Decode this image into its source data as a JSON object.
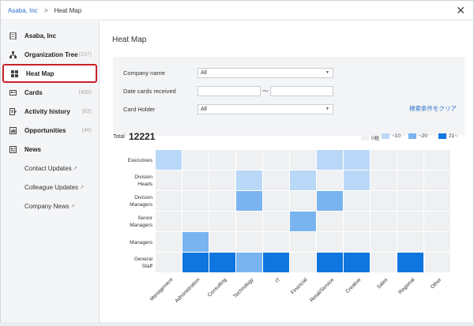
{
  "breadcrumb": {
    "company": "Asaba, Inc",
    "separator": ">",
    "current": "Heat Map"
  },
  "sidebar": {
    "items": [
      {
        "label": "Asaba, Inc",
        "count": "",
        "icon": "building-icon"
      },
      {
        "label": "Organization Tree",
        "count": "(237)",
        "icon": "org-tree-icon"
      },
      {
        "label": "Heat Map",
        "count": "",
        "icon": "grid-icon"
      },
      {
        "label": "Cards",
        "count": "(485)",
        "icon": "card-icon"
      },
      {
        "label": "Activity history",
        "count": "(83)",
        "icon": "history-icon"
      },
      {
        "label": "Opportunities",
        "count": "(46)",
        "icon": "opportunities-icon"
      },
      {
        "label": "News",
        "count": "",
        "icon": "news-icon"
      }
    ],
    "news_sub": [
      {
        "label": "Contact Updates"
      },
      {
        "label": "Colleague Updates"
      },
      {
        "label": "Company News"
      }
    ]
  },
  "main": {
    "title": "Heat Map",
    "filter": {
      "company_label": "Company name",
      "company_value": "All",
      "date_label": "Date cards received",
      "date_sep": "〜",
      "holder_label": "Card Holder",
      "holder_value": "All",
      "clear_label": "検索条件をクリア"
    },
    "total_label": "Total",
    "total_value": "12221",
    "legend": [
      {
        "label": "0枚",
        "color": "#eef0f2"
      },
      {
        "label": "~10",
        "color": "#b9d8f7"
      },
      {
        "label": "~20",
        "color": "#79b4f0"
      },
      {
        "label": "21~",
        "color": "#0f76e0"
      }
    ]
  },
  "chart_data": {
    "type": "heatmap",
    "rows": [
      "Executives",
      "Division Heads",
      "Division Managers",
      "Senior Managers",
      "Managers",
      "General Staff"
    ],
    "columns": [
      "Management",
      "Administration",
      "Consulting",
      "Technology",
      "IT",
      "Financial",
      "Retail/Service",
      "Creative",
      "Sales",
      "Regional",
      "Other"
    ],
    "levels": [
      [
        1,
        0,
        0,
        0,
        0,
        0,
        1,
        1,
        0,
        0,
        0
      ],
      [
        0,
        0,
        0,
        1,
        0,
        1,
        0,
        1,
        0,
        0,
        0
      ],
      [
        0,
        0,
        0,
        2,
        0,
        0,
        2,
        0,
        0,
        0,
        0
      ],
      [
        0,
        0,
        0,
        0,
        0,
        2,
        0,
        0,
        0,
        0,
        0
      ],
      [
        0,
        2,
        0,
        0,
        0,
        0,
        0,
        0,
        0,
        0,
        0
      ],
      [
        0,
        3,
        3,
        2,
        3,
        0,
        3,
        3,
        0,
        3,
        0
      ]
    ],
    "level_legend": [
      "0枚",
      "~10",
      "~20",
      "21~"
    ],
    "level_colors": [
      "#eef0f2",
      "#b9d8f7",
      "#79b4f0",
      "#0f76e0"
    ]
  }
}
